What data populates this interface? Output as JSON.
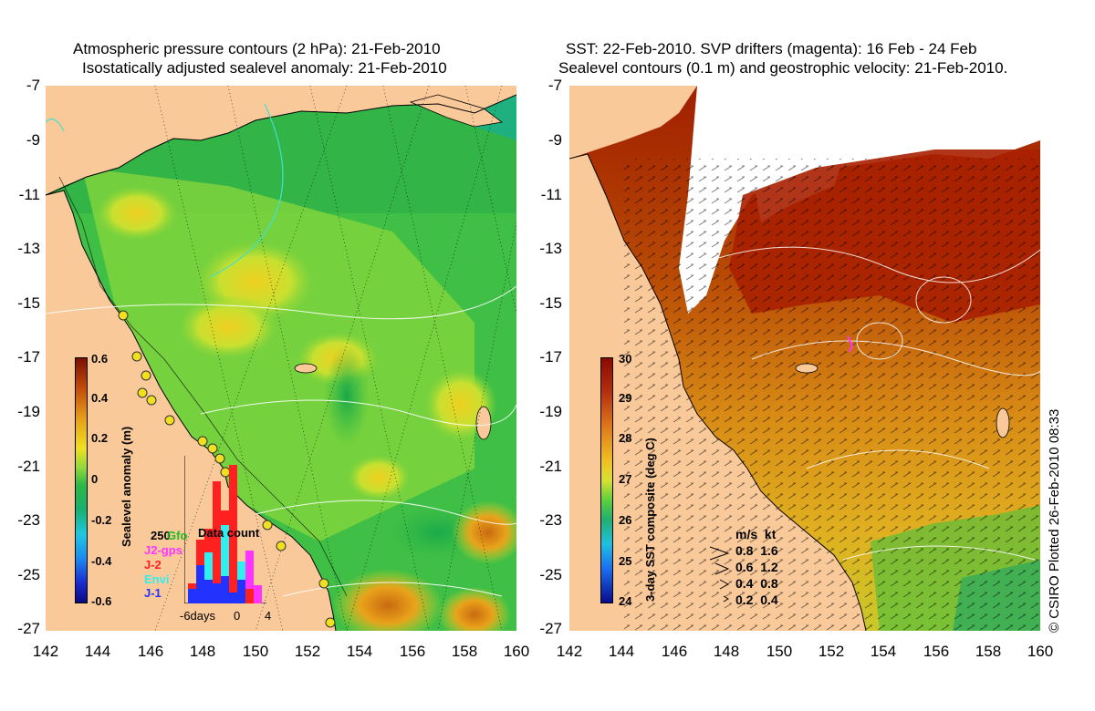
{
  "left_panel": {
    "title_line1": "Atmospheric pressure contours (2 hPa): 21-Feb-2010",
    "title_line2": "Isostatically adjusted sealevel anomaly: 21-Feb-2010",
    "colorbar": {
      "label": "Sealevel anomaly (m)",
      "ticks": [
        "0.6",
        "0.4",
        "0.2",
        "0",
        "-0.2",
        "-0.4",
        "-0.6"
      ]
    },
    "data_count": {
      "title": "Data count",
      "max_label": "250",
      "x_labels": [
        "-6days",
        "0",
        "4"
      ],
      "satellites": [
        {
          "name": "Gfo",
          "color": "#22bb22"
        },
        {
          "name": "J2-gps",
          "color": "#ff33ff"
        },
        {
          "name": "J-2",
          "color": "#ff2020"
        },
        {
          "name": "Envi",
          "color": "#33eeee"
        },
        {
          "name": "J-1",
          "color": "#2233ff"
        }
      ]
    }
  },
  "right_panel": {
    "title_line1": "SST: 22-Feb-2010. SVP drifters (magenta): 16 Feb - 24 Feb",
    "title_line2": "Sealevel contours (0.1 m) and geostrophic velocity: 21-Feb-2010.",
    "colorbar": {
      "label": "3-day SST composite (deg C)",
      "ticks": [
        "30",
        "29",
        "28",
        "27",
        "26",
        "25",
        "24"
      ]
    },
    "velocity_legend": {
      "header": "m/s  kt",
      "rows": [
        "0.8  1.6",
        "0.6  1.2",
        "0.4  0.8",
        "0.2  0.4"
      ]
    }
  },
  "axes": {
    "y_ticks": [
      "-7",
      "-9",
      "-11",
      "-13",
      "-15",
      "-17",
      "-19",
      "-21",
      "-23",
      "-25",
      "-27"
    ],
    "x_ticks": [
      "142",
      "144",
      "146",
      "148",
      "150",
      "152",
      "154",
      "156",
      "158",
      "160"
    ]
  },
  "copyright": "© CSIRO Plotted 26-Feb-2010 08:33",
  "colors": {
    "land": "#f9c99a",
    "sla_green": "#55cc33",
    "sst_red": "#a01f00",
    "sst_orange": "#d98a1a"
  }
}
